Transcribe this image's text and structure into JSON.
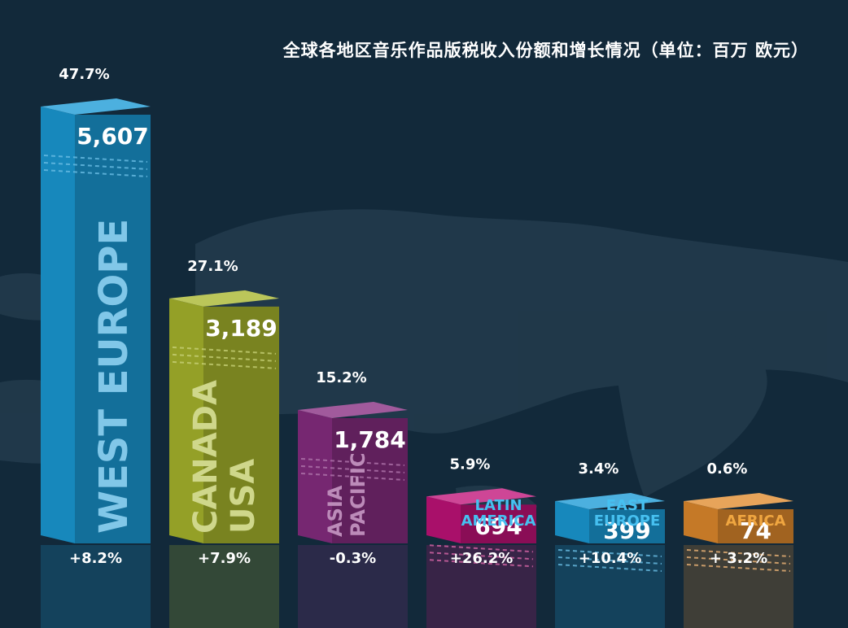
{
  "chart_data": {
    "type": "bar",
    "title": "全球各地区音乐作品版税收入份额和增长情况（单位：百万 欧元）",
    "unit": "百万 欧元",
    "categories": [
      {
        "name": "West Europe",
        "label_lines": [
          "WEST EUROPE"
        ],
        "value": 5607,
        "value_label": "5,607",
        "share": "47.7%",
        "growth": "+8.2%",
        "color": "#1a9ad6"
      },
      {
        "name": "Canada USA",
        "label_lines": [
          "CANADA",
          "USA"
        ],
        "value": 3189,
        "value_label": "3,189",
        "share": "27.1%",
        "growth": "+7.9%",
        "color": "#a8b62c"
      },
      {
        "name": "Asia Pacific",
        "label_lines": [
          "ASIA",
          "PACIFIC"
        ],
        "value": 1784,
        "value_label": "1,784",
        "share": "15.2%",
        "growth": "-0.3%",
        "color": "#862c80"
      },
      {
        "name": "Latin America",
        "label_lines": [
          "LATIN",
          "AMERICA"
        ],
        "value": 694,
        "value_label": "694",
        "share": "5.9%",
        "growth": "+26.2%",
        "color": "#c01278"
      },
      {
        "name": "East Europe",
        "label_lines": [
          "EAST",
          "EUROPE"
        ],
        "value": 399,
        "value_label": "399",
        "share": "3.4%",
        "growth": "+10.4%",
        "color": "#1a9ad6"
      },
      {
        "name": "Africa",
        "label_lines": [
          "AFRICA"
        ],
        "value": 74,
        "value_label": "74",
        "share": "0.6%",
        "growth": "+ 3.2%",
        "color": "#e08a2c"
      }
    ]
  }
}
